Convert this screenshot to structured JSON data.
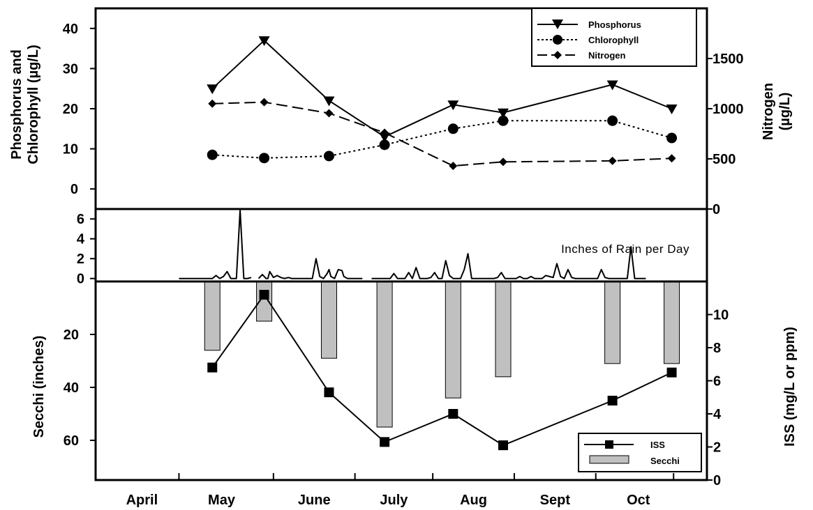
{
  "chart_data": [
    {
      "type": "line",
      "panel": "nutrients",
      "title": "",
      "ylabel_left": [
        "Phosphorus and",
        "Chlorophyll (µg/L)"
      ],
      "ylabel_right": [
        "Nitrogen",
        "(µg/L)"
      ],
      "ylim_left": [
        -5,
        45
      ],
      "yticks_left": [
        0,
        10,
        20,
        30,
        40
      ],
      "ylim_right": [
        0,
        2000
      ],
      "yticks_right": [
        0,
        500,
        1000,
        1500
      ],
      "legend_position": "top-right",
      "series": [
        {
          "name": "Phosphorus",
          "axis": "left",
          "marker": "triangle-down",
          "dash": "solid",
          "x": [
            18,
            46,
            81,
            111,
            148,
            175,
            234,
            266
          ],
          "y": [
            25,
            37,
            22,
            13,
            21,
            19,
            26,
            20
          ]
        },
        {
          "name": "Chlorophyll",
          "axis": "left",
          "marker": "circle",
          "dash": "dotted",
          "x": [
            18,
            46,
            81,
            111,
            148,
            175,
            234,
            266
          ],
          "y": [
            8.5,
            7.7,
            8.2,
            11,
            15,
            17,
            17,
            12.7
          ]
        },
        {
          "name": "Nitrogen",
          "axis": "right",
          "marker": "diamond",
          "dash": "dashed",
          "x": [
            18,
            46,
            81,
            111,
            148,
            175,
            234,
            266
          ],
          "y": [
            1050,
            1065,
            955,
            760,
            430,
            470,
            480,
            505
          ]
        }
      ]
    },
    {
      "type": "line",
      "panel": "rain",
      "title": "Inches of Rain per Day",
      "ylim": [
        -0.3,
        7
      ],
      "yticks": [
        0,
        2,
        4,
        6
      ],
      "segments": [
        {
          "x": [
            0,
            14,
            16,
            18,
            20,
            22,
            24,
            26,
            28,
            31,
            33,
            35,
            37,
            39
          ],
          "y": [
            0,
            0,
            0,
            0,
            0.3,
            0,
            0.2,
            0.7,
            0,
            0,
            6.9,
            0,
            0,
            0.1
          ]
        },
        {
          "x": [
            43,
            45,
            47,
            48,
            49,
            51,
            53,
            55,
            57,
            59,
            61,
            63,
            65,
            70,
            72,
            74,
            76,
            78,
            80,
            81,
            82,
            84,
            86,
            88,
            89,
            91,
            93,
            95,
            97,
            99
          ],
          "y": [
            0,
            0.4,
            0,
            0,
            0.7,
            0.1,
            0.3,
            0.1,
            0,
            0.1,
            0,
            0,
            0,
            0,
            0,
            2,
            0.2,
            0,
            0.5,
            0.9,
            0.2,
            0,
            0.9,
            0.8,
            0.2,
            0,
            0,
            0,
            0,
            0
          ]
        },
        {
          "x": [
            104,
            106,
            108,
            110,
            112,
            114,
            116,
            118,
            120,
            122,
            124,
            126,
            128,
            130,
            132,
            134,
            136,
            138,
            140,
            142,
            144,
            146,
            148,
            150,
            152,
            154,
            156,
            158,
            160,
            162,
            164,
            166,
            168,
            170,
            172,
            174,
            176,
            178,
            180,
            182,
            184,
            186,
            188,
            190,
            192,
            194,
            196,
            198,
            200,
            202,
            204,
            206,
            208,
            210,
            212,
            214,
            216,
            218,
            220,
            222,
            224,
            226,
            228,
            230,
            232,
            234,
            236,
            238,
            240,
            242,
            244,
            246,
            248,
            250,
            252
          ],
          "y": [
            0,
            0,
            0,
            0,
            0,
            0,
            0.5,
            0,
            0,
            0,
            0.6,
            0,
            1.1,
            0,
            0,
            0,
            0.1,
            0.6,
            0,
            0,
            1.8,
            0.3,
            0,
            0,
            0,
            0.9,
            2.5,
            0,
            0,
            0,
            0,
            0,
            0,
            0,
            0.1,
            0.6,
            0,
            0,
            0,
            0,
            0.2,
            0,
            0,
            0.2,
            0,
            0,
            0,
            0.3,
            0.2,
            0.1,
            1.5,
            0.2,
            0,
            0.9,
            0.1,
            0,
            0,
            0,
            0,
            0,
            0,
            0,
            0.9,
            0.1,
            0,
            0,
            0,
            0,
            0,
            0,
            3.2,
            0,
            0,
            0,
            0
          ]
        }
      ]
    },
    {
      "type": "bar+line",
      "panel": "secchi",
      "title": "",
      "ylabel_left": "Secchi (inches)",
      "ylabel_right": "ISS (mg/L or ppm)",
      "ylim_left": [
        0,
        75
      ],
      "yticks_left": [
        20,
        40,
        60
      ],
      "ylim_right": [
        0,
        12
      ],
      "yticks_right": [
        0,
        2,
        4,
        6,
        8,
        10
      ],
      "legend_position": "bottom-right",
      "bars": {
        "name": "Secchi",
        "axis": "left",
        "color": "#c0c0c0",
        "x": [
          18,
          46,
          81,
          111,
          148,
          175,
          234,
          266
        ],
        "values": [
          26,
          15,
          29,
          55,
          44,
          36,
          31,
          31
        ]
      },
      "line": {
        "name": "ISS",
        "axis": "right",
        "marker": "square",
        "x": [
          18,
          46,
          81,
          111,
          148,
          175,
          234,
          266
        ],
        "values": [
          6.8,
          11.2,
          5.3,
          2.3,
          4,
          2.1,
          4.8,
          6.5
        ]
      }
    }
  ],
  "x_axis": {
    "unit": "day since Apr 1",
    "xlim": [
      -45,
      285
    ],
    "tick_boundaries": [
      0,
      51,
      95,
      137,
      181,
      225,
      267
    ],
    "month_labels": [
      {
        "label": "April",
        "x": -20
      },
      {
        "label": "May",
        "x": 23
      },
      {
        "label": "June",
        "x": 73
      },
      {
        "label": "July",
        "x": 116
      },
      {
        "label": "Aug",
        "x": 159
      },
      {
        "label": "Sept",
        "x": 203
      },
      {
        "label": "Oct",
        "x": 248
      }
    ]
  },
  "legend_nutrients": [
    "Phosphorus",
    "Chlorophyll",
    "Nitrogen"
  ],
  "legend_secchi": [
    "ISS",
    "Secchi"
  ]
}
